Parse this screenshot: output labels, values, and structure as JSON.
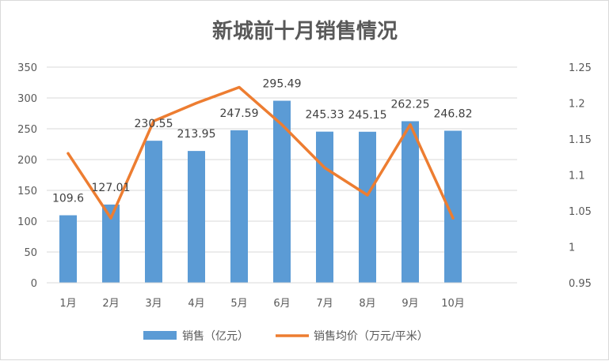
{
  "chart_data": {
    "type": "bar",
    "title": "新城前十月销售情况",
    "categories": [
      "1月",
      "2月",
      "3月",
      "4月",
      "5月",
      "6月",
      "7月",
      "8月",
      "9月",
      "10月"
    ],
    "series": [
      {
        "name": "销售（亿元）",
        "type": "bar",
        "axis": "left",
        "color": "#5b9bd5",
        "values": [
          109.6,
          127.01,
          230.55,
          213.95,
          247.59,
          295.49,
          245.33,
          245.15,
          262.25,
          246.82
        ],
        "labels": [
          "109.6",
          "127.01",
          "230.55",
          "213.95",
          "247.59",
          "295.49",
          "245.33",
          "245.15",
          "262.25",
          "246.82"
        ]
      },
      {
        "name": "销售均价（万元/平米）",
        "type": "line",
        "axis": "right",
        "color": "#ed7d31",
        "values": [
          1.13,
          1.04,
          1.175,
          1.2,
          1.222,
          1.17,
          1.11,
          1.072,
          1.17,
          1.04
        ]
      }
    ],
    "y_left": {
      "min": 0,
      "max": 350,
      "ticks": [
        "0",
        "50",
        "100",
        "150",
        "200",
        "250",
        "300",
        "350"
      ]
    },
    "y_right": {
      "min": 0.95,
      "max": 1.25,
      "ticks": [
        "0.95",
        "1",
        "1.05",
        "1.1",
        "1.15",
        "1.2",
        "1.25"
      ]
    },
    "grid": true,
    "legend_position": "bottom"
  }
}
